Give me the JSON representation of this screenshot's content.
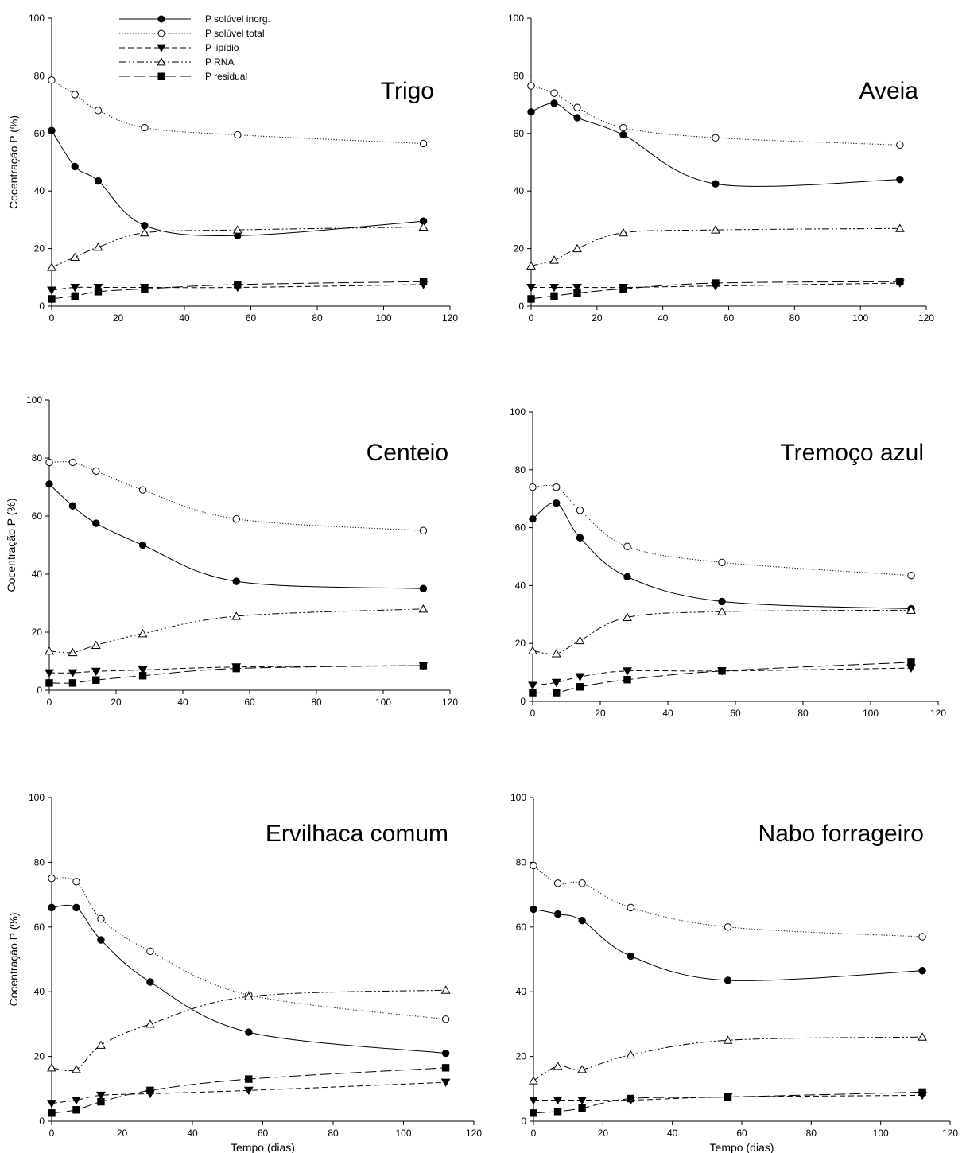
{
  "legend": [
    {
      "series": "inorg",
      "label": "P solúvel inorg."
    },
    {
      "series": "total",
      "label": "P solúvel total"
    },
    {
      "series": "lipid",
      "label": "P lipídio"
    },
    {
      "series": "rna",
      "label": "P RNA"
    },
    {
      "series": "resid",
      "label": "P residual"
    }
  ],
  "series_styles": {
    "inorg": {
      "marker": "circle-filled",
      "line": "solid",
      "smooth": true
    },
    "total": {
      "marker": "circle-open",
      "line": "dotted",
      "smooth": true
    },
    "lipid": {
      "marker": "triangle-down-filled",
      "line": "short-dash",
      "smooth": true
    },
    "rna": {
      "marker": "triangle-up-open",
      "line": "dash-dot-dot",
      "smooth": true
    },
    "resid": {
      "marker": "square-filled",
      "line": "long-dash",
      "smooth": true
    }
  },
  "chart_data": [
    {
      "type": "line",
      "title": "Trigo",
      "xlabel": "",
      "ylabel": "Cocentração P (%)",
      "xlim": [
        0,
        120
      ],
      "ylim": [
        0,
        100
      ],
      "xticks": [
        0,
        20,
        40,
        60,
        80,
        100,
        120
      ],
      "yticks": [
        0,
        20,
        40,
        60,
        80,
        100
      ],
      "grid": false,
      "legend": "top-left",
      "x": [
        0,
        7,
        14,
        28,
        56,
        112
      ],
      "series": [
        {
          "key": "inorg",
          "name": "P solúvel inorg.",
          "values": [
            61,
            48.5,
            43.5,
            28,
            24.5,
            29.5
          ]
        },
        {
          "key": "total",
          "name": "P solúvel total",
          "values": [
            78.5,
            73.5,
            68,
            62,
            59.5,
            56.5
          ]
        },
        {
          "key": "lipid",
          "name": "P lipídio",
          "values": [
            5.5,
            6.5,
            6.5,
            6.5,
            6.5,
            7.5
          ]
        },
        {
          "key": "rna",
          "name": "P RNA",
          "values": [
            13.5,
            17,
            20.5,
            25.5,
            26.5,
            27.5
          ]
        },
        {
          "key": "resid",
          "name": "P residual",
          "values": [
            2.5,
            3.5,
            5,
            6,
            7.5,
            8.5
          ]
        }
      ]
    },
    {
      "type": "line",
      "title": "Aveia",
      "xlabel": "",
      "ylabel": "",
      "xlim": [
        0,
        120
      ],
      "ylim": [
        0,
        100
      ],
      "xticks": [
        0,
        20,
        40,
        60,
        80,
        100,
        120
      ],
      "yticks": [
        0,
        20,
        40,
        60,
        80,
        100
      ],
      "grid": false,
      "x": [
        0,
        7,
        14,
        28,
        56,
        112
      ],
      "series": [
        {
          "key": "inorg",
          "values": [
            67.5,
            70.5,
            65.5,
            59.5,
            42.5,
            44
          ]
        },
        {
          "key": "total",
          "values": [
            76.5,
            74,
            69,
            62,
            58.5,
            56
          ]
        },
        {
          "key": "lipid",
          "values": [
            6.5,
            6.5,
            6.5,
            6.5,
            7,
            8
          ]
        },
        {
          "key": "rna",
          "values": [
            14,
            16,
            20,
            25.5,
            26.5,
            27
          ]
        },
        {
          "key": "resid",
          "values": [
            2.5,
            3.5,
            4.5,
            6,
            8,
            8.5
          ]
        }
      ]
    },
    {
      "type": "line",
      "title": "Centeio",
      "xlabel": "",
      "ylabel": "Cocentração P (%)",
      "xlim": [
        0,
        120
      ],
      "ylim": [
        0,
        100
      ],
      "xticks": [
        0,
        20,
        40,
        60,
        80,
        100,
        120
      ],
      "yticks": [
        0,
        20,
        40,
        60,
        80,
        100
      ],
      "grid": false,
      "x": [
        0,
        7,
        14,
        28,
        56,
        112
      ],
      "series": [
        {
          "key": "inorg",
          "values": [
            71,
            63.5,
            57.5,
            50,
            37.5,
            35
          ]
        },
        {
          "key": "total",
          "values": [
            78.5,
            78.5,
            75.5,
            69,
            59,
            55
          ]
        },
        {
          "key": "lipid",
          "values": [
            6,
            6,
            6.5,
            7,
            8,
            8.5
          ]
        },
        {
          "key": "rna",
          "values": [
            13.5,
            13,
            15.5,
            19.5,
            25.5,
            28
          ]
        },
        {
          "key": "resid",
          "values": [
            2.5,
            2.5,
            3.5,
            5,
            7.5,
            8.5
          ]
        }
      ]
    },
    {
      "type": "line",
      "title": "Tremoço azul",
      "xlabel": "",
      "ylabel": "",
      "xlim": [
        0,
        120
      ],
      "ylim": [
        0,
        100
      ],
      "xticks": [
        0,
        20,
        40,
        60,
        80,
        100,
        120
      ],
      "yticks": [
        0,
        20,
        40,
        60,
        80,
        100
      ],
      "grid": false,
      "x": [
        0,
        7,
        14,
        28,
        56,
        112
      ],
      "series": [
        {
          "key": "inorg",
          "values": [
            63,
            68.5,
            56.5,
            43,
            34.5,
            32
          ]
        },
        {
          "key": "total",
          "values": [
            74,
            74,
            66,
            53.5,
            48,
            43.5
          ]
        },
        {
          "key": "lipid",
          "values": [
            5.5,
            6.5,
            8.5,
            10.5,
            10.5,
            11.5
          ]
        },
        {
          "key": "rna",
          "values": [
            17.5,
            16.5,
            21,
            29,
            31,
            31.5
          ]
        },
        {
          "key": "resid",
          "values": [
            3,
            3,
            5,
            7.5,
            10.5,
            13.5
          ]
        }
      ]
    },
    {
      "type": "line",
      "title": "Ervilhaca comum",
      "xlabel": "Tempo (dias)",
      "ylabel": "Cocentração P (%)",
      "xlim": [
        0,
        120
      ],
      "ylim": [
        0,
        100
      ],
      "xticks": [
        0,
        20,
        40,
        60,
        80,
        100,
        120
      ],
      "yticks": [
        0,
        20,
        40,
        60,
        80,
        100
      ],
      "grid": false,
      "x": [
        0,
        7,
        14,
        28,
        56,
        112
      ],
      "series": [
        {
          "key": "inorg",
          "values": [
            66,
            66,
            56,
            43,
            27.5,
            21
          ]
        },
        {
          "key": "total",
          "values": [
            75,
            74,
            62.5,
            52.5,
            39,
            31.5
          ]
        },
        {
          "key": "lipid",
          "values": [
            5.5,
            6.5,
            8,
            8.5,
            9.5,
            12
          ]
        },
        {
          "key": "rna",
          "values": [
            16.5,
            16,
            23.5,
            30,
            38.5,
            40.5
          ]
        },
        {
          "key": "resid",
          "values": [
            2.5,
            3.5,
            6,
            9.5,
            13,
            16.5
          ]
        }
      ]
    },
    {
      "type": "line",
      "title": "Nabo forrageiro",
      "xlabel": "Tempo (dias)",
      "ylabel": "",
      "xlim": [
        0,
        120
      ],
      "ylim": [
        0,
        100
      ],
      "xticks": [
        0,
        20,
        40,
        60,
        80,
        100,
        120
      ],
      "yticks": [
        0,
        20,
        40,
        60,
        80,
        100
      ],
      "grid": false,
      "x": [
        0,
        7,
        14,
        28,
        56,
        112
      ],
      "series": [
        {
          "key": "inorg",
          "values": [
            65.5,
            64,
            62,
            51,
            43.5,
            46.5
          ]
        },
        {
          "key": "total",
          "values": [
            79,
            73.5,
            73.5,
            66,
            60,
            57
          ]
        },
        {
          "key": "lipid",
          "values": [
            6.5,
            6.5,
            6.5,
            6.5,
            7.5,
            8
          ]
        },
        {
          "key": "rna",
          "values": [
            12.5,
            17,
            16,
            20.5,
            25,
            26
          ]
        },
        {
          "key": "resid",
          "values": [
            2.5,
            3,
            4,
            7,
            7.5,
            9
          ]
        }
      ]
    }
  ]
}
